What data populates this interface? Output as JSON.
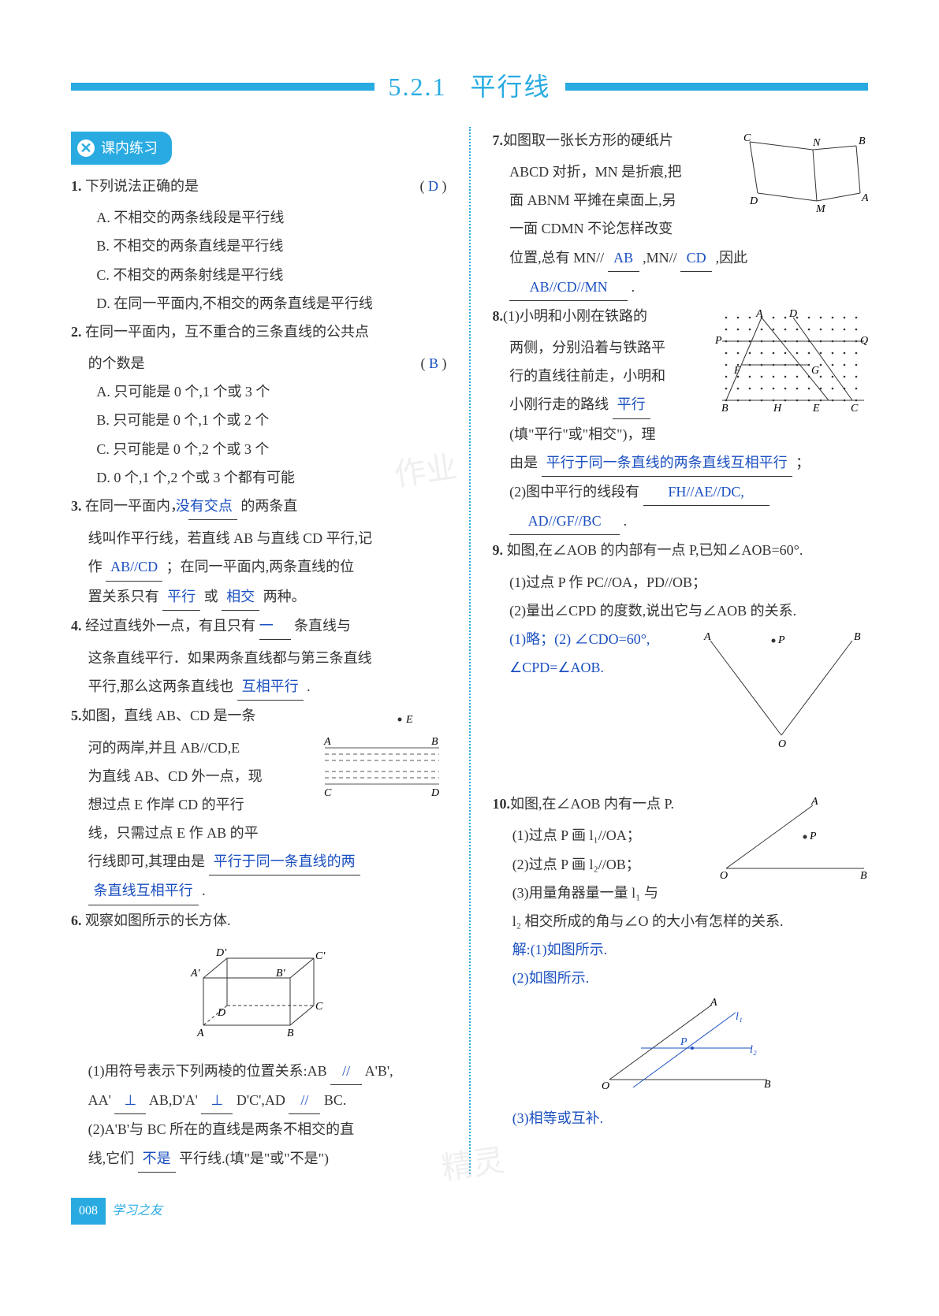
{
  "title": {
    "section": "5.2.1",
    "name": "平行线"
  },
  "section_tag": {
    "icon": "✕",
    "label": "课内练习"
  },
  "left": {
    "q1": {
      "num": "1.",
      "stem": "下列说法正确的是",
      "answer": "D",
      "opts": {
        "A": "A. 不相交的两条线段是平行线",
        "B": "B. 不相交的两条直线是平行线",
        "C": "C. 不相交的两条射线是平行线",
        "D": "D. 在同一平面内,不相交的两条直线是平行线"
      }
    },
    "q2": {
      "num": "2.",
      "stem_a": "在同一平面内，互不重合的三条直线的公共点",
      "stem_b": "的个数是",
      "answer": "B",
      "opts": {
        "A": "A. 只可能是 0 个,1 个或 3 个",
        "B": "B. 只可能是 0 个,1 个或 2 个",
        "C": "C. 只可能是 0 个,2 个或 3 个",
        "D": "D. 0 个,1 个,2 个或 3 个都有可能"
      }
    },
    "q3": {
      "num": "3.",
      "p1a": "在同一平面内，",
      "a1": "没有交点",
      "p1b": "的两条直",
      "p2a": "线叫作平行线，若直线 AB 与直线 CD 平行,记",
      "p3a": "作",
      "a2": "AB//CD",
      "p3b": "；在同一平面内,两条直线的位",
      "p4a": "置关系只有",
      "a3": "平行",
      "p4b": "或",
      "a4": "相交",
      "p4c": "两种。"
    },
    "q4": {
      "num": "4.",
      "p1a": "经过直线外一点，有且只有",
      "a1": "一",
      "p1b": "条直线与",
      "p2": "这条直线平行．如果两条直线都与第三条直线",
      "p3a": "平行,那么这两条直线也",
      "a2": "互相平行",
      "p3b": "."
    },
    "q5": {
      "num": "5.",
      "l1": "如图，直线 AB、CD 是一条",
      "l2": "河的两岸,并且 AB//CD,E",
      "l3": "为直线 AB、CD 外一点，现",
      "l4": "想过点 E 作岸 CD 的平行",
      "l5": "线，只需过点 E 作 AB 的平",
      "l6a": "行线即可,其理由是",
      "a1": "平行于同一条直线的两",
      "a2": "条直线互相平行",
      "l7": ".",
      "fig": {
        "labels": {
          "E": "E",
          "A": "A",
          "B": "B",
          "C": "C",
          "D": "D"
        },
        "colors": {
          "line": "#555",
          "dash": "#555"
        }
      }
    },
    "q6": {
      "num": "6.",
      "stem": "观察如图所示的长方体.",
      "fig": {
        "labels": {
          "A": "A",
          "B": "B",
          "C": "C",
          "D": "D",
          "Ap": "A'",
          "Bp": "B'",
          "Cp": "C'",
          "Dp": "D'"
        },
        "colors": {
          "solid": "#333",
          "dash": "#333"
        }
      },
      "p1a": "(1)用符号表示下列两棱的位置关系:AB",
      "a1": "//",
      "p1b": "A'B',",
      "p2a": "AA'",
      "a2": "⊥",
      "p2b": "AB,D'A'",
      "a3": "⊥",
      "p2c": "D'C',AD",
      "a4": "//",
      "p2d": "BC.",
      "p3": "(2)A'B'与 BC 所在的直线是两条不相交的直",
      "p4a": "线,它们",
      "a5": "不是",
      "p4b": "平行线.(填\"是\"或\"不是\")"
    }
  },
  "right": {
    "q7": {
      "num": "7.",
      "l1": "如图取一张长方形的硬纸片",
      "l2": "ABCD 对折，MN 是折痕,把",
      "l3": "面 ABNM 平摊在桌面上,另",
      "l4": "一面 CDMN 不论怎样改变",
      "l5a": "位置,总有 MN//",
      "a1": "AB",
      "l5b": ",MN//",
      "a2": "CD",
      "l5c": ",因此",
      "a3": "AB//CD//MN",
      "l6": ".",
      "fig": {
        "labels": {
          "C": "C",
          "N": "N",
          "B": "B",
          "D": "D",
          "M": "M",
          "A": "A"
        },
        "colors": {
          "line": "#333"
        }
      }
    },
    "q8": {
      "num": "8.",
      "l1": "(1)小明和小刚在铁路的",
      "l2": "两侧，分别沿着与铁路平",
      "l3": "行的直线往前走，小明和",
      "l4a": "小刚行走的路线",
      "a1": "平行",
      "l5": "(填\"平行\"或\"相交\")，理",
      "l6a": "由是",
      "a2": "平行于同一条直线的两条直线互相平行",
      "l6b": "；",
      "l7a": "(2)图中平行的线段有",
      "a3": "FH//AE//DC,",
      "a4": "AD//GF//BC",
      "l8": ".",
      "fig": {
        "labels": {
          "A": "A",
          "D": "D",
          "P": "P",
          "Q": "Q",
          "F": "F",
          "G": "G",
          "B": "B",
          "H": "H",
          "E": "E",
          "C": "C"
        },
        "colors": {
          "dot": "#333",
          "line": "#333"
        }
      }
    },
    "q9": {
      "num": "9.",
      "l1": "如图,在∠AOB 的内部有一点 P,已知∠AOB=60°.",
      "l2": "(1)过点 P 作 PC//OA，PD//OB；",
      "l3": "(2)量出∠CPD 的度数,说出它与∠AOB 的关系.",
      "a1": "(1)略；(2) ∠CDO=60°,",
      "a2": "∠CPD=∠AOB.",
      "fig": {
        "labels": {
          "P": "P",
          "A": "A",
          "B": "B",
          "O": "O"
        },
        "colors": {
          "line": "#333"
        }
      }
    },
    "q10": {
      "num": "10.",
      "l1": "如图,在∠AOB 内有一点 P.",
      "l2": "(1)过点 P 画 l₁//OA；",
      "l3": "(2)过点 P 画 l₂//OB；",
      "l4": "(3)用量角器量一量 l₁ 与",
      "l5": "l₂ 相交所成的角与∠O 的大小有怎样的关系.",
      "a1": "解:(1)如图所示.",
      "a2": "(2)如图所示.",
      "a3": "(3)相等或互补.",
      "fig": {
        "labels": {
          "A": "A",
          "P": "P",
          "O": "O",
          "B": "B",
          "l1": "l₁",
          "l2": "l₂"
        },
        "colors": {
          "black": "#333",
          "blue": "#1a4fc0"
        }
      }
    }
  },
  "footer": {
    "page": "008",
    "brand": "学习之友"
  },
  "watermarks": {
    "w1": "作业",
    "w2": "精灵"
  }
}
